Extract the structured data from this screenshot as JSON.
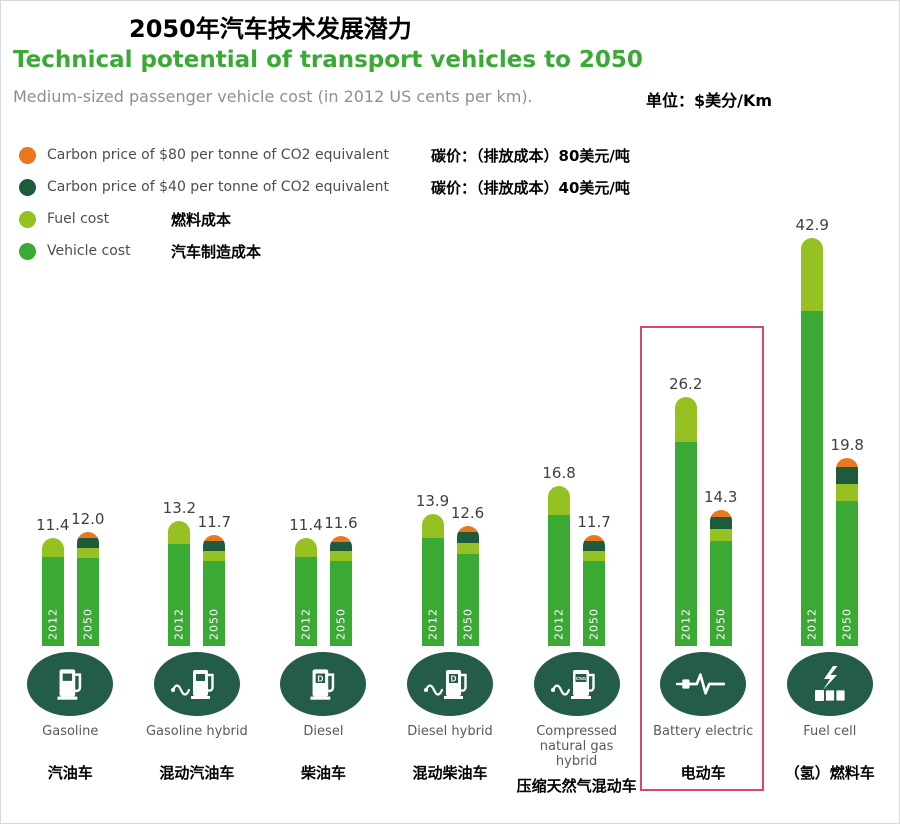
{
  "header": {
    "title_zh": "2050年汽车技术发展潜力",
    "title_en": "Technical potential of transport vehicles to 2050",
    "subtitle": "Medium-sized passenger vehicle cost (in 2012 US cents per km).",
    "unit_label": "单位：$美分/Km"
  },
  "chart_data": {
    "type": "bar",
    "title": "Technical potential of transport vehicles to 2050",
    "subtitle": "Medium-sized passenger vehicle cost (in 2012 US cents per km).",
    "unit": "$ US cents per km",
    "ylim": [
      0,
      44
    ],
    "grid": false,
    "legend_position": "top-left",
    "legend": [
      {
        "key": "carbon80",
        "label_en": "Carbon price of $80 per tonne of CO2 equivalent",
        "label_zh": "碳价：（排放成本）80美元/吨",
        "color": "#e8781e"
      },
      {
        "key": "carbon40",
        "label_en": "Carbon price of $40 per tonne of CO2 equivalent",
        "label_zh": "碳价：（排放成本）40美元/吨",
        "color": "#1e5b3c"
      },
      {
        "key": "fuel",
        "label_en": "Fuel cost",
        "label_zh": "燃料成本",
        "color": "#95c122"
      },
      {
        "key": "vehicle",
        "label_en": "Vehicle cost",
        "label_zh": "汽车制造成本",
        "color": "#3aaa35"
      }
    ],
    "years": [
      "2012",
      "2050"
    ],
    "groups": [
      {
        "label_en": "Gasoline",
        "label_zh": "汽油车",
        "icon": "fuel-pump-icon",
        "highlighted": false,
        "values": {
          "2012": 11.4,
          "2050": 12.0
        }
      },
      {
        "label_en": "Gasoline hybrid",
        "label_zh": "混动汽油车",
        "icon": "hybrid-fuel-pump-icon",
        "highlighted": false,
        "values": {
          "2012": 13.2,
          "2050": 11.7
        }
      },
      {
        "label_en": "Diesel",
        "label_zh": "柴油车",
        "icon": "diesel-pump-icon",
        "highlighted": false,
        "values": {
          "2012": 11.4,
          "2050": 11.6
        }
      },
      {
        "label_en": "Diesel hybrid",
        "label_zh": "混动柴油车",
        "icon": "diesel-hybrid-pump-icon",
        "highlighted": false,
        "values": {
          "2012": 13.9,
          "2050": 12.6
        }
      },
      {
        "label_en": "Compressed natural gas hybrid",
        "label_zh": "压缩天然气混动车",
        "icon": "cng-pump-icon",
        "highlighted": false,
        "values": {
          "2012": 16.8,
          "2050": 11.7
        }
      },
      {
        "label_en": "Battery electric",
        "label_zh": "电动车",
        "icon": "plug-pulse-icon",
        "highlighted": true,
        "values": {
          "2012": 26.2,
          "2050": 14.3
        }
      },
      {
        "label_en": "Fuel cell",
        "label_zh": "（氢）燃料车",
        "icon": "hydrogen-fuel-cell-icon",
        "highlighted": false,
        "values": {
          "2012": 42.9,
          "2050": 19.8
        }
      }
    ],
    "segment_fractions": {
      "2012": {
        "carbon80": 0,
        "carbon40": 0,
        "fuel": 0.18
      },
      "2050": {
        "carbon80": 0.05,
        "carbon40": 0.09,
        "fuel": 0.09
      }
    },
    "highlight_color": "#d5476d"
  }
}
